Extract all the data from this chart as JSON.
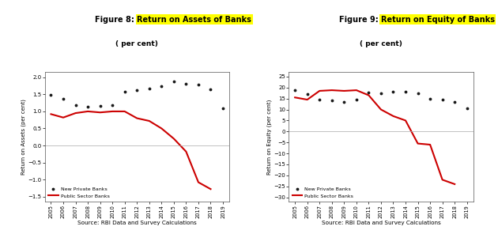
{
  "years": [
    2005,
    2006,
    2007,
    2008,
    2009,
    2010,
    2011,
    2012,
    2013,
    2014,
    2015,
    2016,
    2017,
    2018,
    2019
  ],
  "roa_private": [
    1.48,
    1.38,
    1.18,
    1.13,
    1.15,
    1.18,
    1.58,
    1.62,
    1.68,
    1.75,
    1.88,
    1.82,
    1.78,
    1.65,
    1.08
  ],
  "roa_public": [
    0.92,
    0.82,
    0.95,
    1.0,
    0.97,
    1.0,
    1.0,
    0.8,
    0.72,
    0.5,
    0.2,
    -0.18,
    -1.08,
    -1.28
  ],
  "roe_private": [
    19.0,
    17.0,
    14.5,
    14.0,
    13.5,
    14.5,
    17.8,
    17.5,
    18.0,
    18.0,
    17.5,
    15.0,
    14.5,
    13.5,
    10.5
  ],
  "roe_public": [
    15.5,
    14.5,
    18.5,
    18.8,
    18.5,
    18.8,
    16.5,
    10.0,
    7.0,
    5.0,
    -5.5,
    -6.0,
    -22.0,
    -24.0
  ],
  "fig8_title_plain": "Figure 8: ",
  "fig8_title_highlight": "Return on Assets of Banks",
  "fig8_subtitle": "( per cent)",
  "fig8_ylabel": "Return on Assets (per cent)",
  "fig8_ylim": [
    -1.65,
    2.15
  ],
  "fig8_yticks": [
    -1.5,
    -1.0,
    -0.5,
    0,
    0.5,
    1.0,
    1.5,
    2.0
  ],
  "fig8_pub_years": [
    2005,
    2006,
    2007,
    2008,
    2009,
    2010,
    2011,
    2012,
    2013,
    2014,
    2015,
    2016,
    2017,
    2018
  ],
  "fig9_title_plain": "Figure 9: ",
  "fig9_title_highlight": "Return on Equity of Banks",
  "fig9_subtitle": "( per cent)",
  "fig9_ylabel": "Return on Equity (per cent)",
  "fig9_ylim": [
    -32,
    27
  ],
  "fig9_yticks": [
    -30,
    -25,
    -20,
    -15,
    -10,
    -5,
    0,
    5,
    10,
    15,
    20,
    25
  ],
  "fig9_pub_years": [
    2005,
    2006,
    2007,
    2008,
    2009,
    2010,
    2011,
    2012,
    2013,
    2014,
    2015,
    2016,
    2017,
    2018
  ],
  "source_text": "Source: RBI Data and Survey Calculations",
  "private_color": "#1a1a1a",
  "public_color": "#cc0000",
  "highlight_bg": "#ffff00",
  "bg_color": "#ffffff"
}
